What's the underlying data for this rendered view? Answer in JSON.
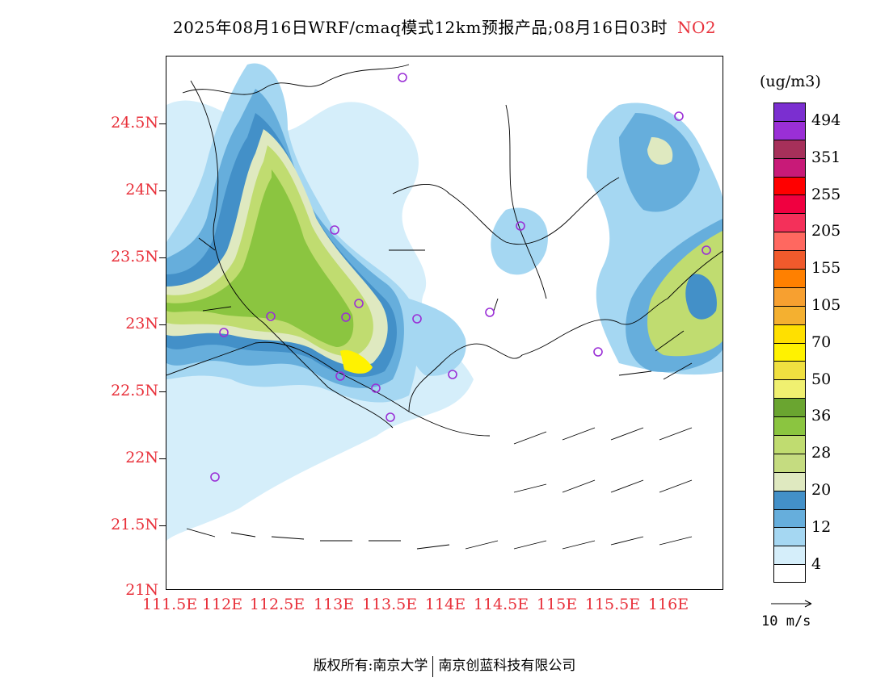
{
  "title": {
    "main": "2025年08月16日WRF/cmaq模式12km预报产品;08月16日03时",
    "pollutant": "NO2"
  },
  "map": {
    "lat_labels": [
      "24.5N",
      "24N",
      "23.5N",
      "23N",
      "22.5N",
      "22N",
      "21.5N",
      "21N"
    ],
    "lon_labels": [
      "111.5E",
      "112E",
      "112.5E",
      "113E",
      "113.5E",
      "114E",
      "114.5E",
      "115E",
      "115.5E",
      "116E"
    ]
  },
  "colorbar": {
    "unit": "(ug/m3)",
    "colors": [
      "#7b2fd0",
      "#9a2fd6",
      "#a6305a",
      "#c81a78",
      "#ff0000",
      "#f00040",
      "#f4305a",
      "#ff6860",
      "#f05a2c",
      "#ff8000",
      "#f7a030",
      "#f4b030",
      "#ffe000",
      "#fff200",
      "#f0e040",
      "#f0f070",
      "#6aa530",
      "#8bc540",
      "#c0dc70",
      "#c5dc80",
      "#dfe9c0",
      "#4390c8",
      "#66aedc",
      "#a5d7f2",
      "#d5eefa",
      "#ffffff"
    ],
    "labels": [
      "494",
      "351",
      "255",
      "205",
      "155",
      "105",
      "70",
      "50",
      "36",
      "28",
      "20",
      "12",
      "4"
    ]
  },
  "wind_legend": {
    "label": "10 m/s"
  },
  "footer": {
    "left": "版权所有:南京大学",
    "right": "南京创蓝科技有限公司"
  }
}
